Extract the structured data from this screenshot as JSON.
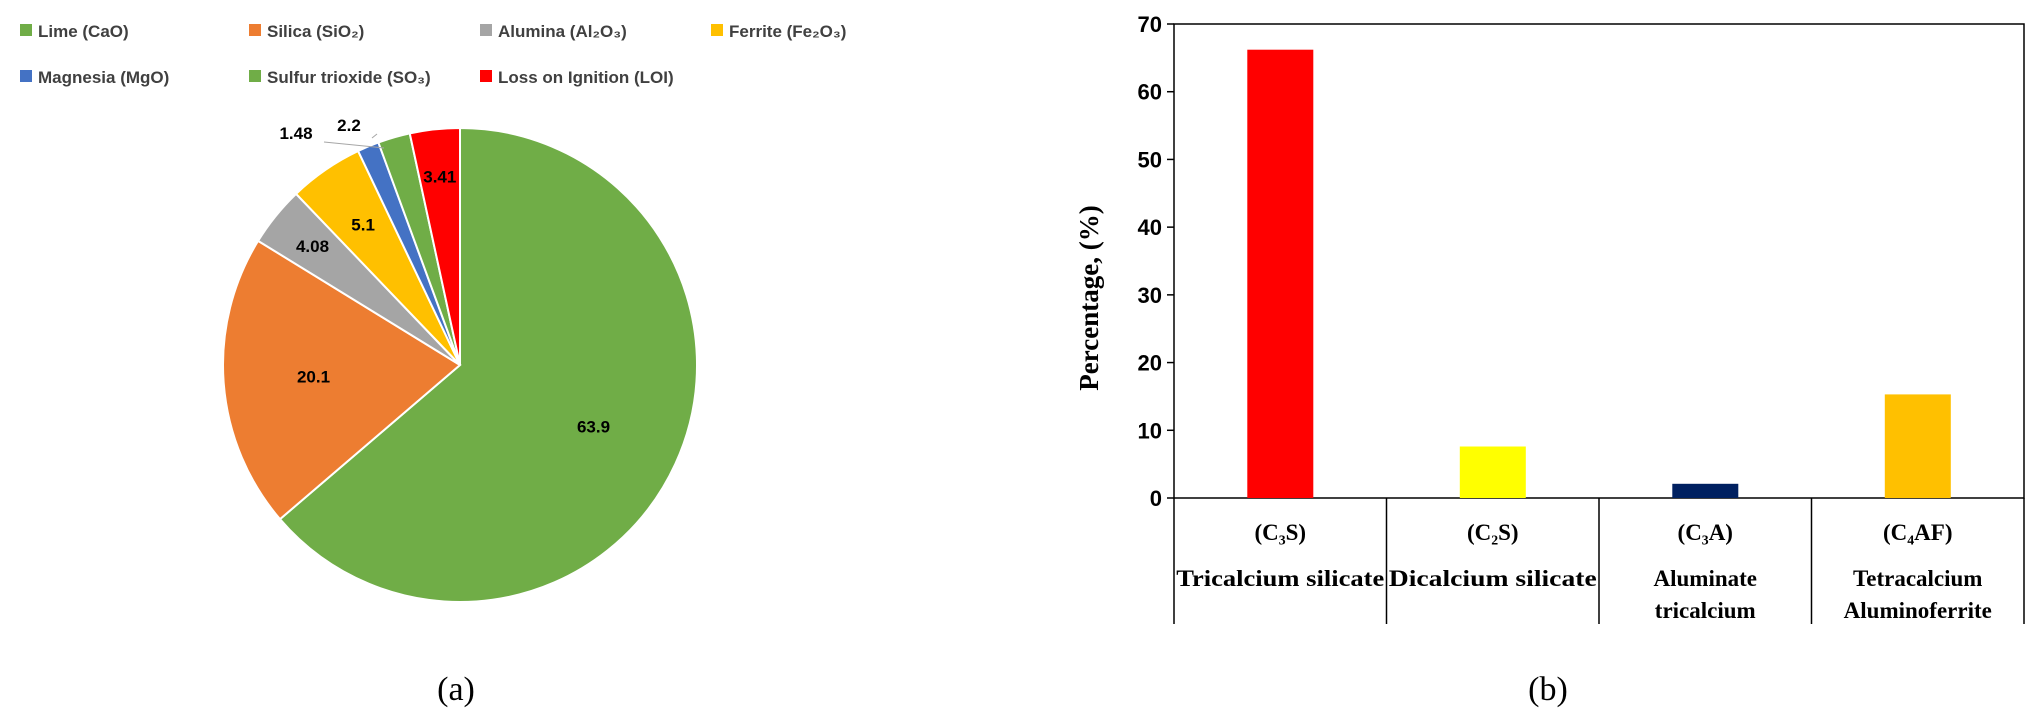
{
  "chart_data": [
    {
      "type": "pie",
      "panel_label": "(a)",
      "categories": [
        "Lime (CaO)",
        "Silica (SiO₂)",
        "Alumina (Al₂O₃)",
        "Ferrite (Fe₂O₃)",
        "Magnesia (MgO)",
        "Sulfur trioxide (SO₃)",
        "Loss on Ignition (LOI)"
      ],
      "values": [
        63.9,
        20.1,
        4.08,
        5.1,
        1.48,
        2.2,
        3.41
      ],
      "value_labels": [
        "63.9",
        "20.1",
        "4.08",
        "5.1",
        "1.48",
        "2.2",
        "3.41"
      ],
      "colors": [
        "#70ad47",
        "#ed7d31",
        "#a5a5a5",
        "#ffc000",
        "#4472c4",
        "#70ad47",
        "#ff0000"
      ],
      "legend": "top"
    },
    {
      "type": "bar",
      "panel_label": "(b)",
      "categories": [
        {
          "formula": "(C₃S)",
          "name": [
            "Tricalcium silicate"
          ]
        },
        {
          "formula": "(C₂S)",
          "name": [
            "Dicalcium silicate"
          ]
        },
        {
          "formula": "(C₃A)",
          "name": [
            "Aluminate",
            "tricalcium"
          ]
        },
        {
          "formula": "(C₄AF)",
          "name": [
            "Tetracalcium",
            "Aluminoferrite"
          ]
        }
      ],
      "values": [
        66.2,
        7.6,
        2.1,
        15.3
      ],
      "colors": [
        "#ff0000",
        "#ffff00",
        "#002060",
        "#ffc000"
      ],
      "ylabel": "Percentage, (%)",
      "ylim": [
        0,
        70
      ],
      "yticks": [
        0,
        10,
        20,
        30,
        40,
        50,
        60,
        70
      ],
      "grid": false
    }
  ]
}
